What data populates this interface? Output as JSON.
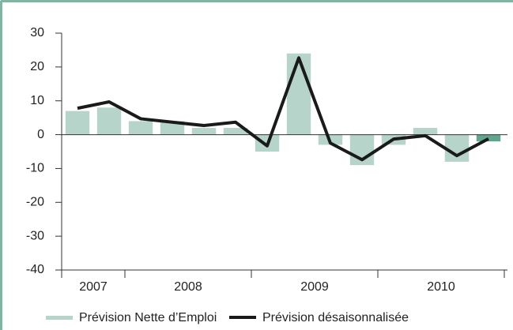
{
  "chart_data": {
    "type": "bar_line",
    "categories": [
      null,
      null,
      null,
      null,
      null,
      null,
      null,
      null,
      null,
      null,
      null,
      null,
      null,
      null
    ],
    "groups": [
      {
        "label": "2007",
        "count": 2
      },
      {
        "label": "2008",
        "count": 4
      },
      {
        "label": "2009",
        "count": 4
      },
      {
        "label": "2010",
        "count": 4
      }
    ],
    "series": [
      {
        "name": "Prévision Nette d’Emploi",
        "kind": "bar",
        "color": "#b6d4c9",
        "highlight_color": "#5fa68c",
        "colors": [
          "#b6d4c9",
          "#b6d4c9",
          "#b6d4c9",
          "#b6d4c9",
          "#b6d4c9",
          "#b6d4c9",
          "#b6d4c9",
          "#b6d4c9",
          "#b6d4c9",
          "#b6d4c9",
          "#b6d4c9",
          "#b6d4c9",
          "#b6d4c9",
          "#5fa68c"
        ],
        "values": [
          7,
          8,
          4,
          4,
          2,
          2,
          -5,
          24,
          -3,
          -9,
          -3,
          2,
          -8,
          -2
        ]
      },
      {
        "name": "Prévision désaisonnalisée",
        "kind": "line",
        "color": "#1a1a1a",
        "values": [
          7.8,
          9.7,
          4.7,
          3.7,
          2.7,
          3.7,
          -3.3,
          22.7,
          -2.5,
          -7.4,
          -1.3,
          -0.3,
          -6.2,
          -1.2
        ]
      }
    ],
    "ylim": [
      -40,
      30
    ],
    "yticks": [
      -40,
      -30,
      -20,
      -10,
      0,
      10,
      20,
      30
    ],
    "legend": "bottom"
  }
}
